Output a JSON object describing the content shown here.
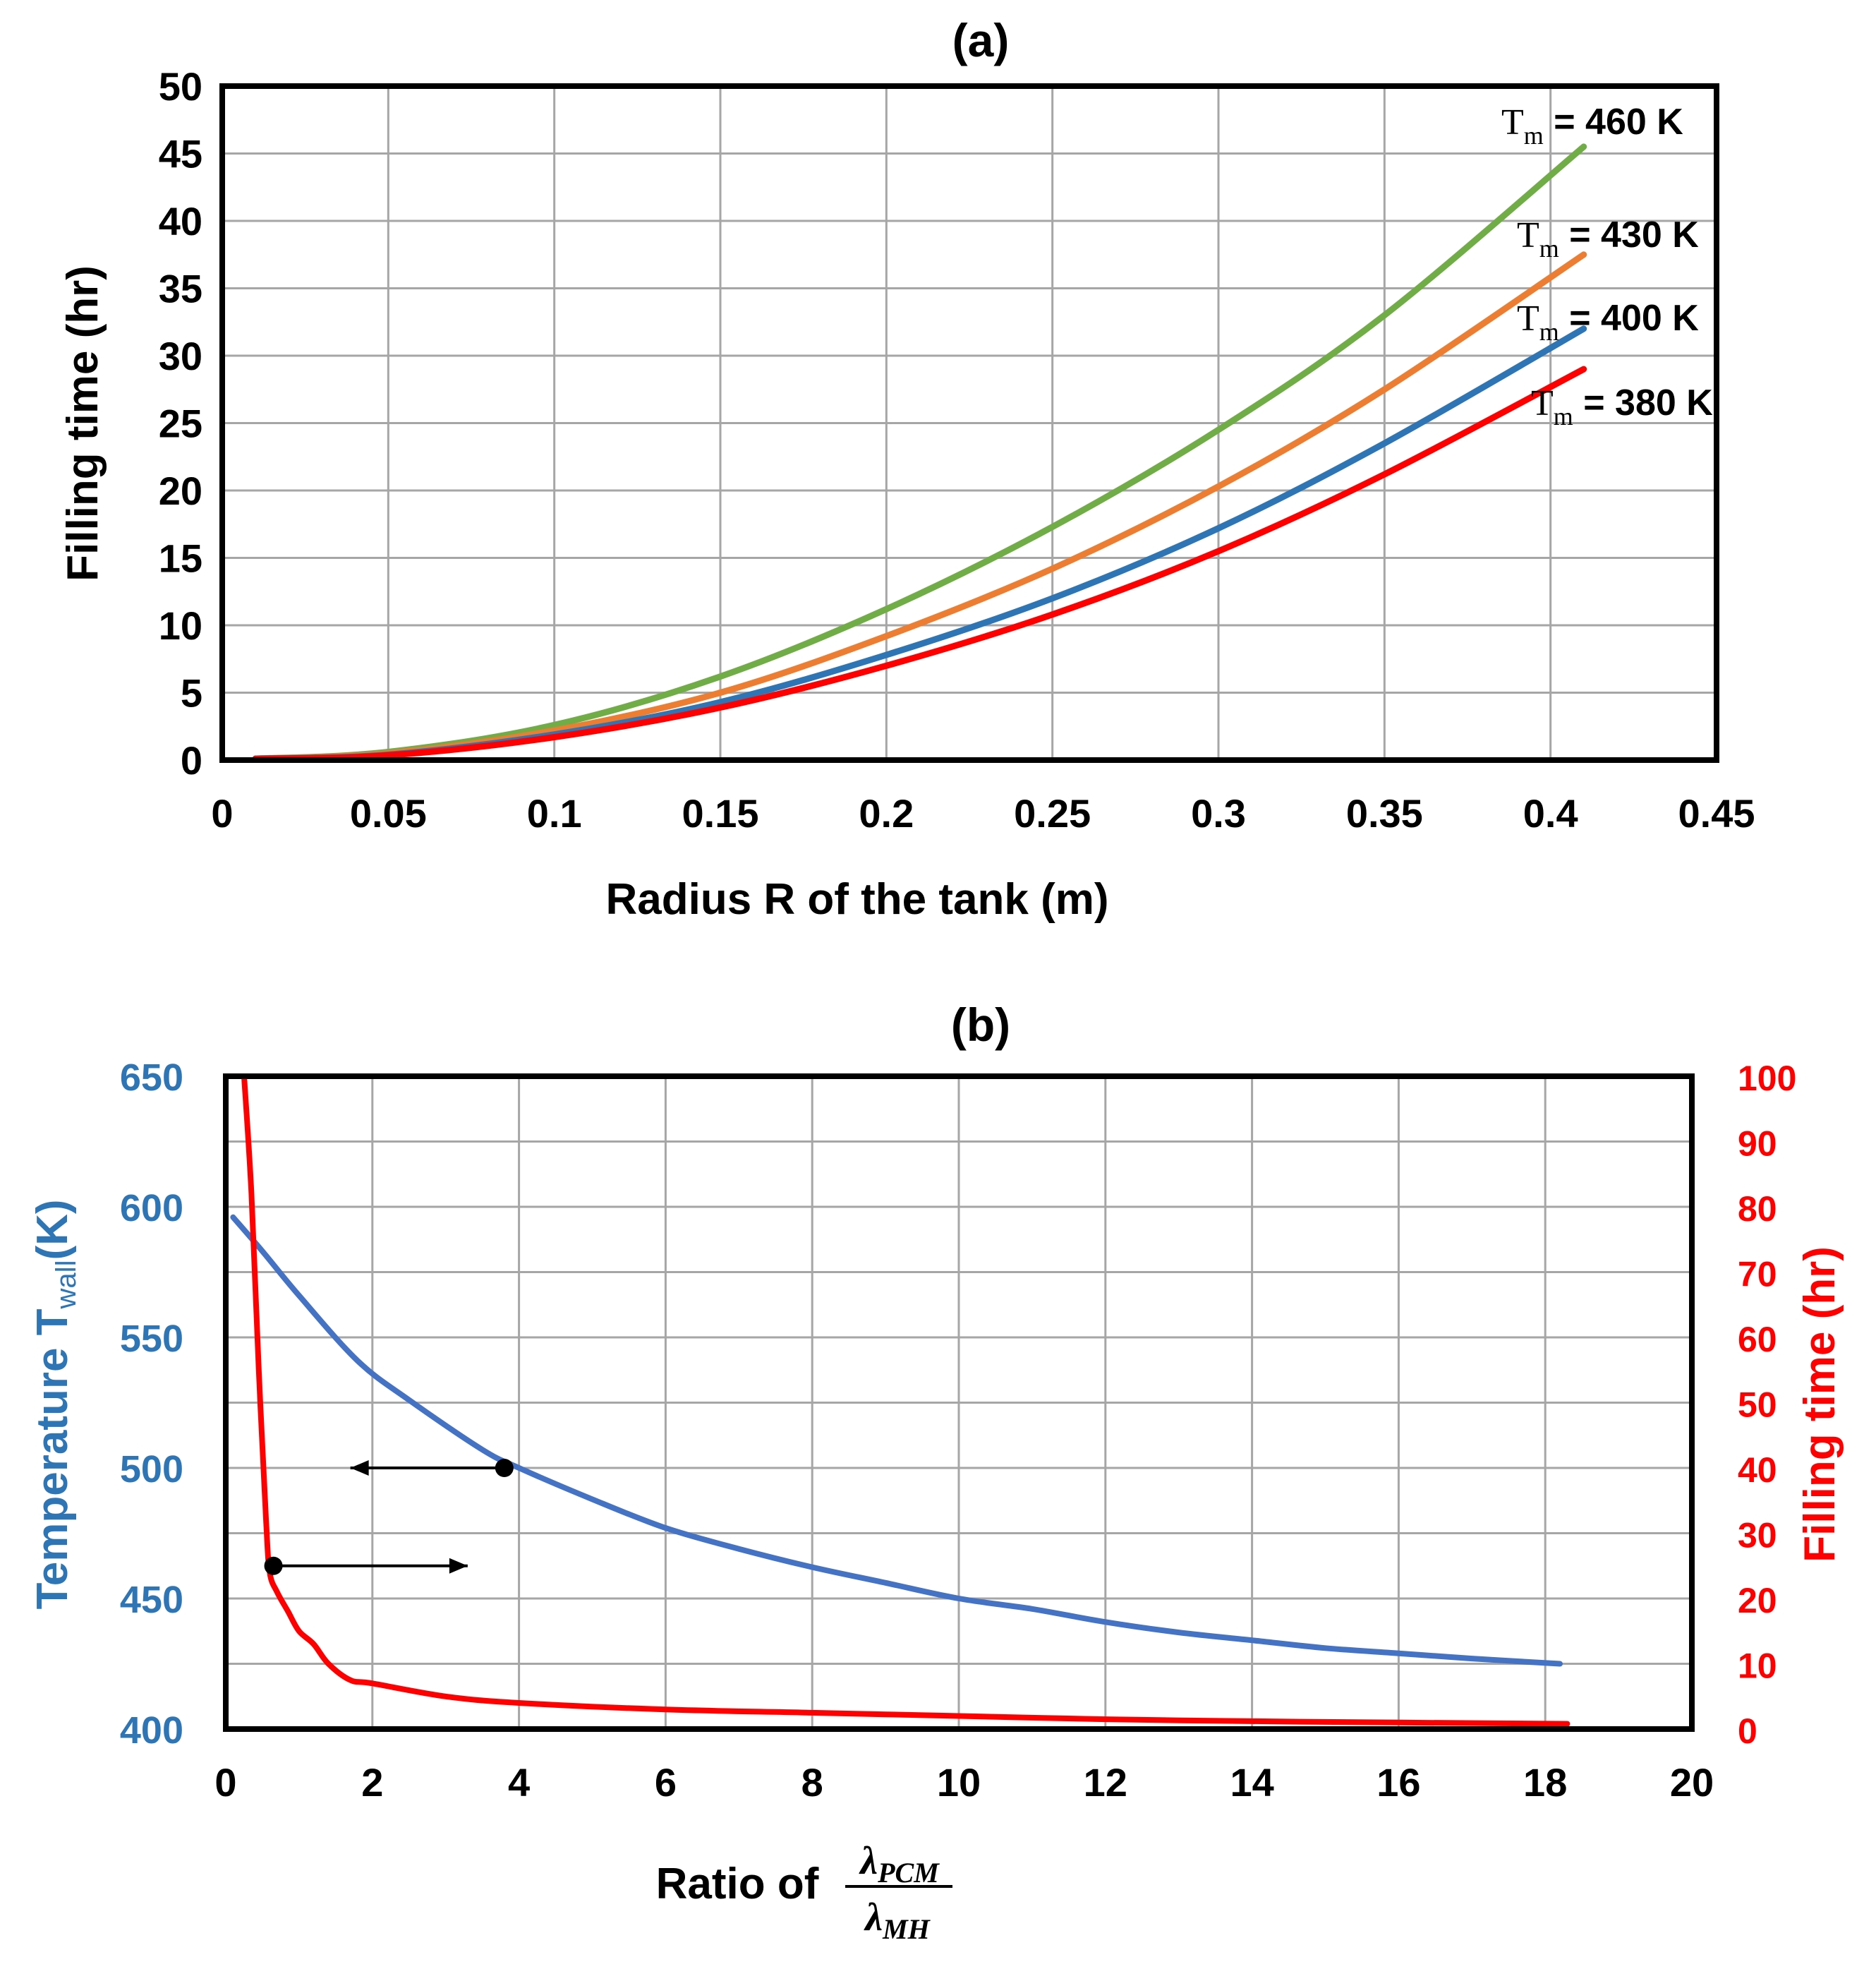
{
  "chart_data": [
    {
      "panel": "(a)",
      "type": "line",
      "title": "(a)",
      "xlabel": "Radius R of the tank (m)",
      "ylabel": "Filling time (hr)",
      "xlim": [
        0,
        0.45
      ],
      "ylim": [
        0,
        50
      ],
      "xticks": [
        0,
        0.05,
        0.1,
        0.15,
        0.2,
        0.25,
        0.3,
        0.35,
        0.4,
        0.45
      ],
      "xtick_labels": [
        "0",
        "0.05",
        "0.1",
        "0.15",
        "0.2",
        "0.25",
        "0.3",
        "0.35",
        "0.4",
        "0.45"
      ],
      "yticks": [
        0,
        5,
        10,
        15,
        20,
        25,
        30,
        35,
        40,
        45,
        50
      ],
      "ytick_labels": [
        "0",
        "5",
        "10",
        "15",
        "20",
        "25",
        "30",
        "35",
        "40",
        "45",
        "50"
      ],
      "grid": true,
      "series": [
        {
          "name": "Tm = 460 K",
          "label_sub": "m",
          "label_rest": "= 460 K",
          "color": "#70ad47",
          "x": [
            0.01,
            0.05,
            0.1,
            0.15,
            0.2,
            0.25,
            0.3,
            0.35,
            0.41
          ],
          "y": [
            0.1,
            0.6,
            2.6,
            6.2,
            11.2,
            17.3,
            24.5,
            33.0,
            45.5
          ]
        },
        {
          "name": "Tm = 430 K",
          "label_sub": "m",
          "label_rest": "= 430 K",
          "color": "#ed7d31",
          "x": [
            0.01,
            0.05,
            0.1,
            0.15,
            0.2,
            0.25,
            0.3,
            0.35,
            0.41
          ],
          "y": [
            0.1,
            0.5,
            2.2,
            5.0,
            9.2,
            14.2,
            20.3,
            27.5,
            37.5
          ]
        },
        {
          "name": "Tm = 400 K",
          "label_sub": "m",
          "label_rest": "= 400 K",
          "color": "#2e75b6",
          "x": [
            0.01,
            0.05,
            0.1,
            0.15,
            0.2,
            0.25,
            0.3,
            0.35,
            0.41
          ],
          "y": [
            0.1,
            0.4,
            1.9,
            4.3,
            7.8,
            12.0,
            17.2,
            23.5,
            32.0
          ]
        },
        {
          "name": "Tm = 380 K",
          "label_sub": "m",
          "label_rest": "= 380 K",
          "color": "#ff0000",
          "x": [
            0.01,
            0.05,
            0.1,
            0.15,
            0.2,
            0.25,
            0.3,
            0.35,
            0.41
          ],
          "y": [
            0.1,
            0.35,
            1.7,
            3.9,
            7.0,
            10.8,
            15.5,
            21.2,
            29.0
          ]
        }
      ]
    },
    {
      "panel": "(b)",
      "type": "line",
      "title": "(b)",
      "xlabel": "Ratio of",
      "xlabel_num": "λ",
      "xlabel_num_sub": "PCM",
      "xlabel_den": "λ",
      "xlabel_den_sub": "MH",
      "ylabel_left": "Temperature T",
      "ylabel_left_sub": "wall",
      "ylabel_left_unit": "(K)",
      "ylabel_right": "Filling time (hr)",
      "xlim": [
        0,
        20
      ],
      "ylim_left": [
        400,
        650
      ],
      "ylim_right": [
        0,
        100
      ],
      "xticks": [
        0,
        2,
        4,
        6,
        8,
        10,
        12,
        14,
        16,
        18,
        20
      ],
      "xtick_labels": [
        "0",
        "2",
        "4",
        "6",
        "8",
        "10",
        "12",
        "14",
        "16",
        "18",
        "20"
      ],
      "yticks_left": [
        400,
        450,
        500,
        550,
        600,
        650
      ],
      "ytick_labels_left": [
        "400",
        "450",
        "500",
        "550",
        "600",
        "650"
      ],
      "yticks_right": [
        0,
        10,
        20,
        30,
        40,
        50,
        60,
        70,
        80,
        90,
        100
      ],
      "ytick_labels_right": [
        "0",
        "10",
        "20",
        "30",
        "40",
        "50",
        "60",
        "70",
        "80",
        "90",
        "100"
      ],
      "left_color": "#2e75b6",
      "right_color": "#ff0000",
      "grid": true,
      "series": [
        {
          "name": "Temperature T_wall",
          "axis": "left",
          "color": "#4472c4",
          "x": [
            0.1,
            0.5,
            1,
            1.8,
            2.5,
            3.5,
            4,
            5,
            6,
            7,
            8,
            9,
            10,
            11,
            12,
            13,
            14,
            15,
            16,
            17,
            18.2
          ],
          "y": [
            596,
            583,
            566,
            541,
            526,
            507,
            500,
            488,
            477,
            469,
            462,
            456,
            450,
            446,
            441,
            437,
            434,
            431,
            429,
            427,
            425
          ]
        },
        {
          "name": "Filling time",
          "axis": "right",
          "color": "#ff0000",
          "x": [
            0.25,
            0.35,
            0.45,
            0.55,
            0.6,
            0.7,
            0.85,
            1.0,
            1.2,
            1.4,
            1.7,
            2.0,
            3.0,
            4.0,
            6.0,
            8.0,
            10.0,
            12.0,
            14.0,
            16.0,
            18.3
          ],
          "y": [
            100,
            82,
            55,
            32,
            24,
            21,
            18,
            15,
            13,
            10,
            7.5,
            7,
            5,
            4,
            3,
            2.5,
            2,
            1.5,
            1.2,
            1,
            0.8
          ]
        }
      ],
      "annotations": [
        {
          "name": "arrow-to-left-axis",
          "x_from": 3.8,
          "x_to": 1.7,
          "y": 500,
          "axis": "left"
        },
        {
          "name": "arrow-to-right-axis",
          "x_from": 0.65,
          "x_to": 3.3,
          "y": 25,
          "axis": "right"
        }
      ]
    }
  ]
}
